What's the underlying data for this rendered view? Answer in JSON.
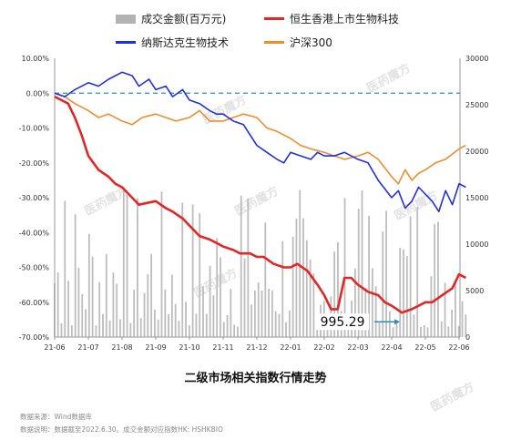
{
  "legend": {
    "volume": "成交金额(百万元)",
    "hk_bio": "恒生香港上市生物科技",
    "nasdaq_bio": "纳斯达克生物技术",
    "csi300": "沪深300"
  },
  "caption": "二级市场相关指数行情走势",
  "notes": {
    "source": "数据来源：Wind数据库",
    "explain": "数据说明：数据截至2022.6.30。成交金额对应指数HK: HSHKBIO"
  },
  "watermark": "医药魔方",
  "annotation": "995.29",
  "colors": {
    "hk_bio": "#e32626",
    "nasdaq_bio": "#1f2ee8",
    "csi300": "#f08c2a",
    "volume": "#bdbdbd",
    "zero_line": "#2a90b8"
  },
  "chart_data": {
    "type": "line",
    "x_labels": [
      "21-06",
      "21-07",
      "21-08",
      "21-09",
      "21-10",
      "21-11",
      "21-12",
      "22-01",
      "22-02",
      "22-03",
      "22-04",
      "22-05",
      "22-06"
    ],
    "y_left": {
      "min": -70,
      "max": 10,
      "ticks": [
        "10.00%",
        "0.00%",
        "-10.00%",
        "-20.00%",
        "-30.00%",
        "-40.00%",
        "-50.00%",
        "-60.00%",
        "-70.00%"
      ]
    },
    "y_right": {
      "min": 0,
      "max": 30000,
      "ticks": [
        "30000",
        "25000",
        "20000",
        "15000",
        "10000",
        "5000",
        "0"
      ]
    },
    "series": [
      {
        "name": "恒生香港上市生物科技",
        "axis": "left",
        "x": [
          0,
          0.2,
          0.4,
          0.6,
          0.8,
          1,
          1.3,
          1.6,
          1.8,
          2,
          2.3,
          2.5,
          3,
          3.3,
          3.5,
          3.8,
          4,
          4.3,
          4.6,
          4.8,
          5,
          5.3,
          5.5,
          5.8,
          6,
          6.2,
          6.5,
          6.8,
          7,
          7.2,
          7.5,
          7.8,
          8,
          8.2,
          8.4,
          8.6,
          8.8,
          9,
          9.3,
          9.6,
          9.8,
          10,
          10.3,
          10.6,
          10.8,
          11,
          11.2,
          11.5,
          11.8,
          12,
          12.2
        ],
        "y": [
          -1,
          -2,
          -3,
          -7,
          -12,
          -18,
          -22,
          -24,
          -26,
          -27,
          -30,
          -32,
          -31,
          -33,
          -34,
          -36,
          -38,
          -41,
          -42,
          -43,
          -44,
          -45,
          -46,
          -46,
          -47,
          -47,
          -49,
          -50,
          -50,
          -49,
          -51,
          -55,
          -58,
          -62,
          -62,
          -53,
          -53,
          -55,
          -57,
          -58,
          -60,
          -61,
          -63,
          -62,
          -61,
          -60,
          -60,
          -58,
          -56,
          -52,
          -53
        ]
      },
      {
        "name": "纳斯达克生物技术",
        "axis": "left",
        "x": [
          0,
          0.3,
          0.6,
          1,
          1.3,
          1.6,
          2,
          2.3,
          2.5,
          2.8,
          3,
          3.3,
          3.5,
          3.8,
          4,
          4.3,
          4.6,
          4.8,
          5,
          5.3,
          5.6,
          5.8,
          6,
          6.3,
          6.6,
          6.8,
          7,
          7.3,
          7.6,
          7.8,
          8,
          8.3,
          8.6,
          9,
          9.3,
          9.6,
          10,
          10.2,
          10.4,
          10.6,
          10.8,
          11,
          11.2,
          11.4,
          11.6,
          11.8,
          12,
          12.2
        ],
        "y": [
          0,
          -1,
          1,
          3,
          2,
          4,
          6,
          5,
          2,
          4,
          1,
          2,
          -1,
          1,
          -2,
          -3,
          -5,
          -6,
          -6,
          -8,
          -9,
          -12,
          -15,
          -17,
          -19,
          -20,
          -17,
          -18,
          -19,
          -17,
          -18,
          -18,
          -17,
          -19,
          -20,
          -25,
          -30,
          -28,
          -33,
          -31,
          -27,
          -29,
          -31,
          -34,
          -28,
          -32,
          -26,
          -27
        ]
      },
      {
        "name": "沪深300",
        "axis": "left",
        "x": [
          0,
          0.3,
          0.6,
          1,
          1.3,
          1.6,
          2,
          2.3,
          2.6,
          3,
          3.3,
          3.6,
          4,
          4.3,
          4.6,
          5,
          5.3,
          5.6,
          6,
          6.3,
          6.6,
          7,
          7.3,
          7.6,
          8,
          8.3,
          8.6,
          9,
          9.3,
          9.6,
          10,
          10.2,
          10.4,
          10.6,
          10.8,
          11,
          11.3,
          11.6,
          12,
          12.2
        ],
        "y": [
          0,
          -1,
          -3,
          -5,
          -7,
          -6,
          -8,
          -9,
          -7,
          -6,
          -7,
          -8,
          -7,
          -5,
          -8,
          -8,
          -7,
          -6,
          -7,
          -10,
          -11,
          -13,
          -15,
          -16,
          -17,
          -18,
          -19,
          -18,
          -17,
          -19,
          -24,
          -26,
          -22,
          -25,
          -23,
          -22,
          -20,
          -19,
          -16,
          -15
        ]
      },
      {
        "name": "成交金额(百万元)",
        "axis": "right",
        "type": "bar",
        "x_range": [
          0,
          12.2
        ],
        "count": 120,
        "y_range": [
          1000,
          16000
        ]
      }
    ]
  }
}
